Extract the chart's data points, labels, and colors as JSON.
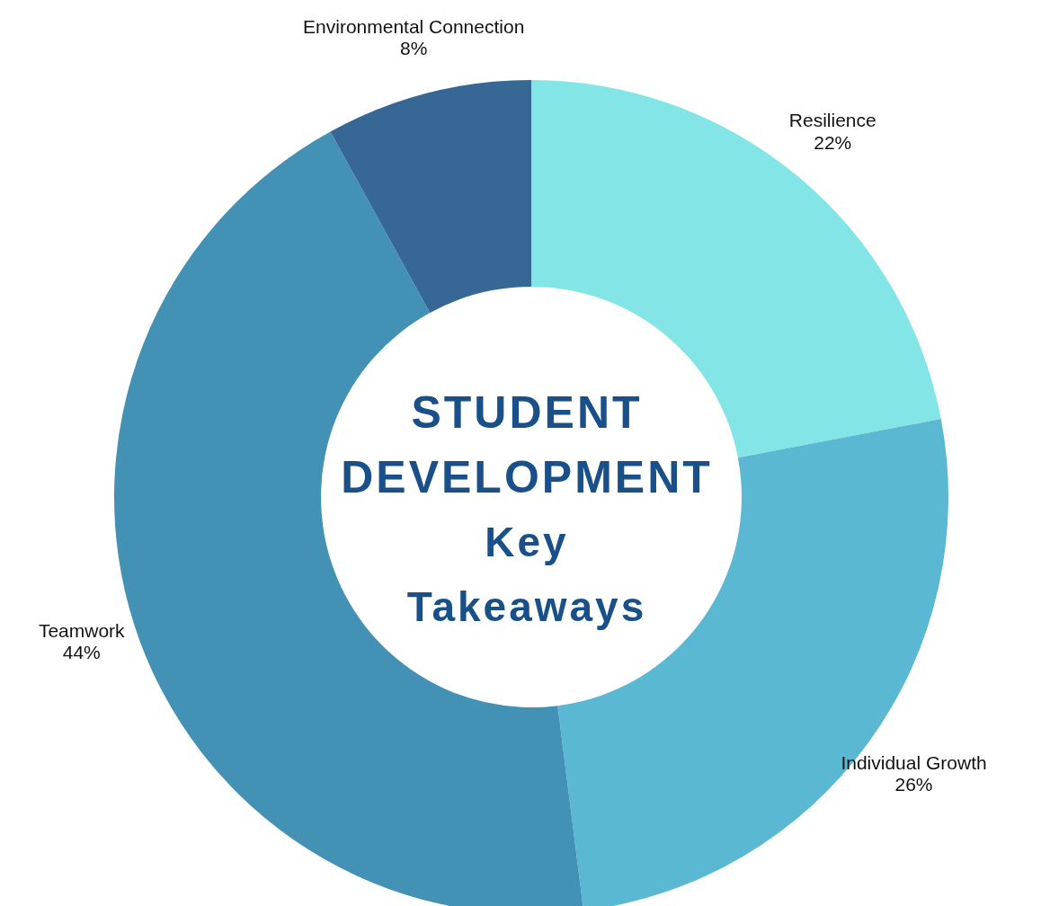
{
  "chart_data": {
    "type": "donut",
    "title": "STUDENT DEVELOPMENT",
    "subtitle": "Key Takeaways",
    "categories": [
      "Resilience",
      "Individual Growth",
      "Teamwork",
      "Environmental Connection"
    ],
    "values": [
      22,
      26,
      44,
      8
    ],
    "value_labels": [
      "22%",
      "26%",
      "44%",
      "8%"
    ],
    "colors": [
      "#83e5e5",
      "#5bb8d3",
      "#4392b6",
      "#376795"
    ],
    "legend": false
  }
}
